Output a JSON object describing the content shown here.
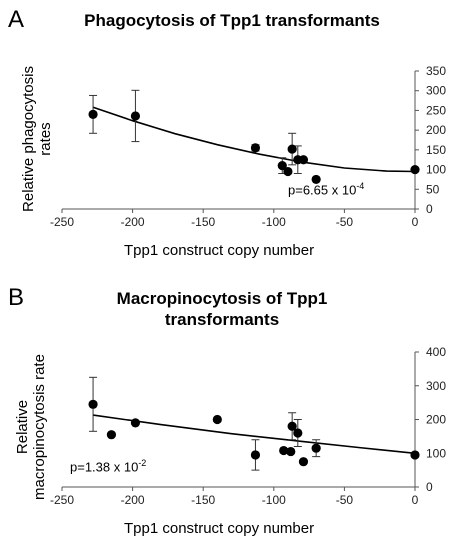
{
  "panels": [
    {
      "letter": "A"
    },
    {
      "letter": "B"
    }
  ],
  "chart_data": [
    {
      "type": "scatter",
      "title": "Phagocytosis of Tpp1 transformants",
      "xlabel": "Tpp1 construct copy number",
      "ylabel": "Relative phagocytosis rates",
      "annotation": {
        "base": "p=6.65 x 10",
        "exponent": "-4"
      },
      "xlim": [
        -250,
        0
      ],
      "ylim": [
        0,
        350
      ],
      "xticks": [
        -250,
        -200,
        -150,
        -100,
        -50,
        0
      ],
      "yticks": [
        0,
        50,
        100,
        150,
        200,
        250,
        300,
        350
      ],
      "y_axis_position": "right",
      "grid": false,
      "points": [
        {
          "x": -228,
          "y": 240,
          "err": 48
        },
        {
          "x": -198,
          "y": 236,
          "err": 65
        },
        {
          "x": -113,
          "y": 155,
          "err": 8
        },
        {
          "x": -94,
          "y": 110,
          "err": 20
        },
        {
          "x": -90,
          "y": 95,
          "err": 0
        },
        {
          "x": -87,
          "y": 152,
          "err": 40
        },
        {
          "x": -83,
          "y": 125,
          "err": 35
        },
        {
          "x": -79,
          "y": 125,
          "err": 0
        },
        {
          "x": -70,
          "y": 75,
          "err": 0
        },
        {
          "x": 0,
          "y": 100,
          "err": 0
        }
      ],
      "trendline": {
        "type": "polynomial",
        "x": [
          -228,
          -200,
          -170,
          -140,
          -110,
          -80,
          -50,
          -20,
          0
        ],
        "y": [
          258,
          224,
          191,
          163,
          139,
          119,
          104,
          96,
          95
        ]
      }
    },
    {
      "type": "scatter",
      "title": "Macropinocytosis of Tpp1 transformants",
      "xlabel": "Tpp1 construct copy number",
      "ylabel": "Relative macropinocytosis rate",
      "annotation": {
        "base": "p=1.38 x 10",
        "exponent": "-2"
      },
      "xlim": [
        -250,
        0
      ],
      "ylim": [
        0,
        400
      ],
      "xticks": [
        -250,
        -200,
        -150,
        -100,
        -50,
        0
      ],
      "yticks": [
        0,
        100,
        200,
        300,
        400
      ],
      "y_axis_position": "right",
      "grid": false,
      "points": [
        {
          "x": -228,
          "y": 245,
          "err": 80
        },
        {
          "x": -215,
          "y": 155,
          "err": 0
        },
        {
          "x": -198,
          "y": 190,
          "err": 0
        },
        {
          "x": -140,
          "y": 200,
          "err": 0
        },
        {
          "x": -113,
          "y": 95,
          "err": 45
        },
        {
          "x": -93,
          "y": 108,
          "err": 0
        },
        {
          "x": -88,
          "y": 105,
          "err": 0
        },
        {
          "x": -87,
          "y": 180,
          "err": 40
        },
        {
          "x": -83,
          "y": 160,
          "err": 40
        },
        {
          "x": -79,
          "y": 75,
          "err": 0
        },
        {
          "x": -70,
          "y": 115,
          "err": 25
        },
        {
          "x": 0,
          "y": 95,
          "err": 0
        }
      ],
      "trendline": {
        "type": "exponential",
        "x": [
          -228,
          -180,
          -130,
          -80,
          -40,
          0
        ],
        "y": [
          213,
          185,
          158,
          135,
          117,
          100
        ]
      }
    }
  ]
}
